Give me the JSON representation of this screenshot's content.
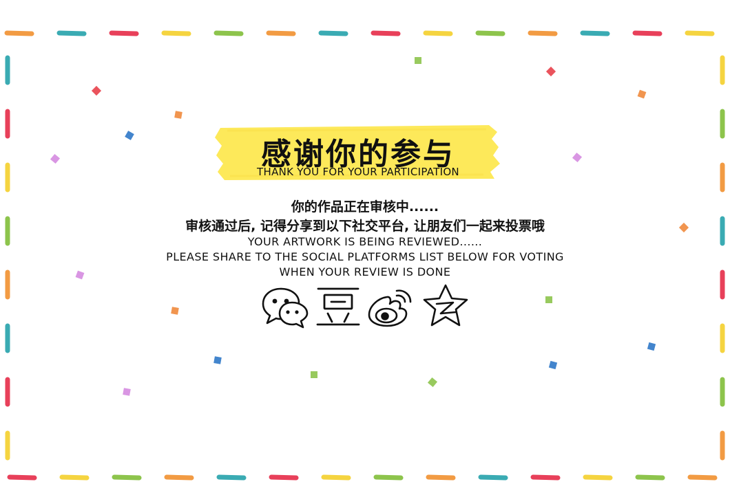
{
  "title": {
    "cn": "感谢你的参与",
    "en": "THANK YOU FOR YOUR PARTICIPATION"
  },
  "message": {
    "cn_line1": "你的作品正在审核中......",
    "cn_line2": "审核通过后, 记得分享到以下社交平台, 让朋友们一起来投票哦",
    "en_line1": "YOUR ARTWORK IS BEING REVIEWED......",
    "en_line2": "PLEASE SHARE TO THE SOCIAL PLATFORMS LIST BELOW FOR VOTING",
    "en_line3": "WHEN YOUR REVIEW IS DONE"
  },
  "share": [
    {
      "icon": "wechat-icon"
    },
    {
      "icon": "douban-icon"
    },
    {
      "icon": "weibo-icon"
    },
    {
      "icon": "qzone-icon"
    }
  ],
  "colors": {
    "highlight": "#fde95a",
    "border_palette": [
      "#f29b43",
      "#3aabb3",
      "#e8405a",
      "#f5d440",
      "#8dc44c"
    ],
    "confetti_palette": [
      "#e8404a",
      "#2f78c8",
      "#f08a3c",
      "#8dc44c",
      "#d58be0"
    ]
  }
}
